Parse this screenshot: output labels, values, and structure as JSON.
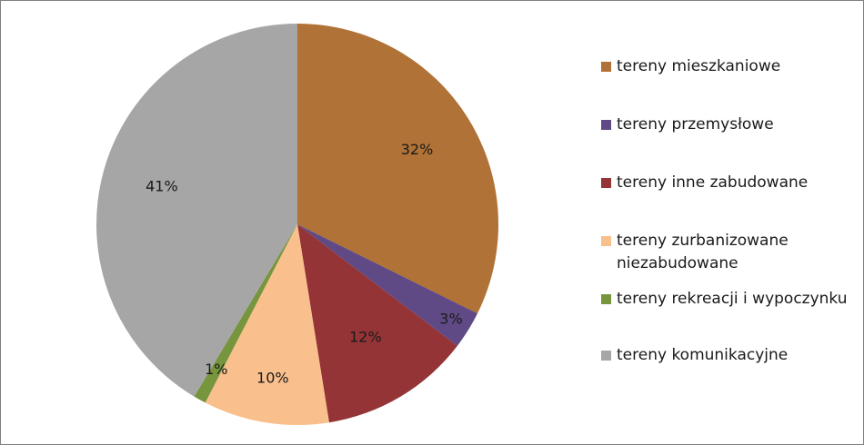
{
  "chart_data": {
    "type": "pie",
    "title": "",
    "legend_position": "right",
    "start_angle_deg": 0,
    "direction": "clockwise",
    "slices": [
      {
        "name": "tereny mieszkaniowe",
        "value": 32,
        "label": "32%",
        "color": "#b07236"
      },
      {
        "name": "tereny przemysłowe",
        "value": 3,
        "label": "3%",
        "color": "#5f4a85"
      },
      {
        "name": "tereny inne zabudowane",
        "value": 12,
        "label": "12%",
        "color": "#943436"
      },
      {
        "name": "tereny zurbanizowane niezabudowane",
        "value": 10,
        "label": "10%",
        "color": "#f9bf8c"
      },
      {
        "name": "tereny rekreacji i wypoczynku",
        "value": 1,
        "label": "1%",
        "color": "#76953c"
      },
      {
        "name": "tereny komunikacyjne",
        "value": 41,
        "label": "41%",
        "color": "#a6a6a6"
      }
    ]
  }
}
